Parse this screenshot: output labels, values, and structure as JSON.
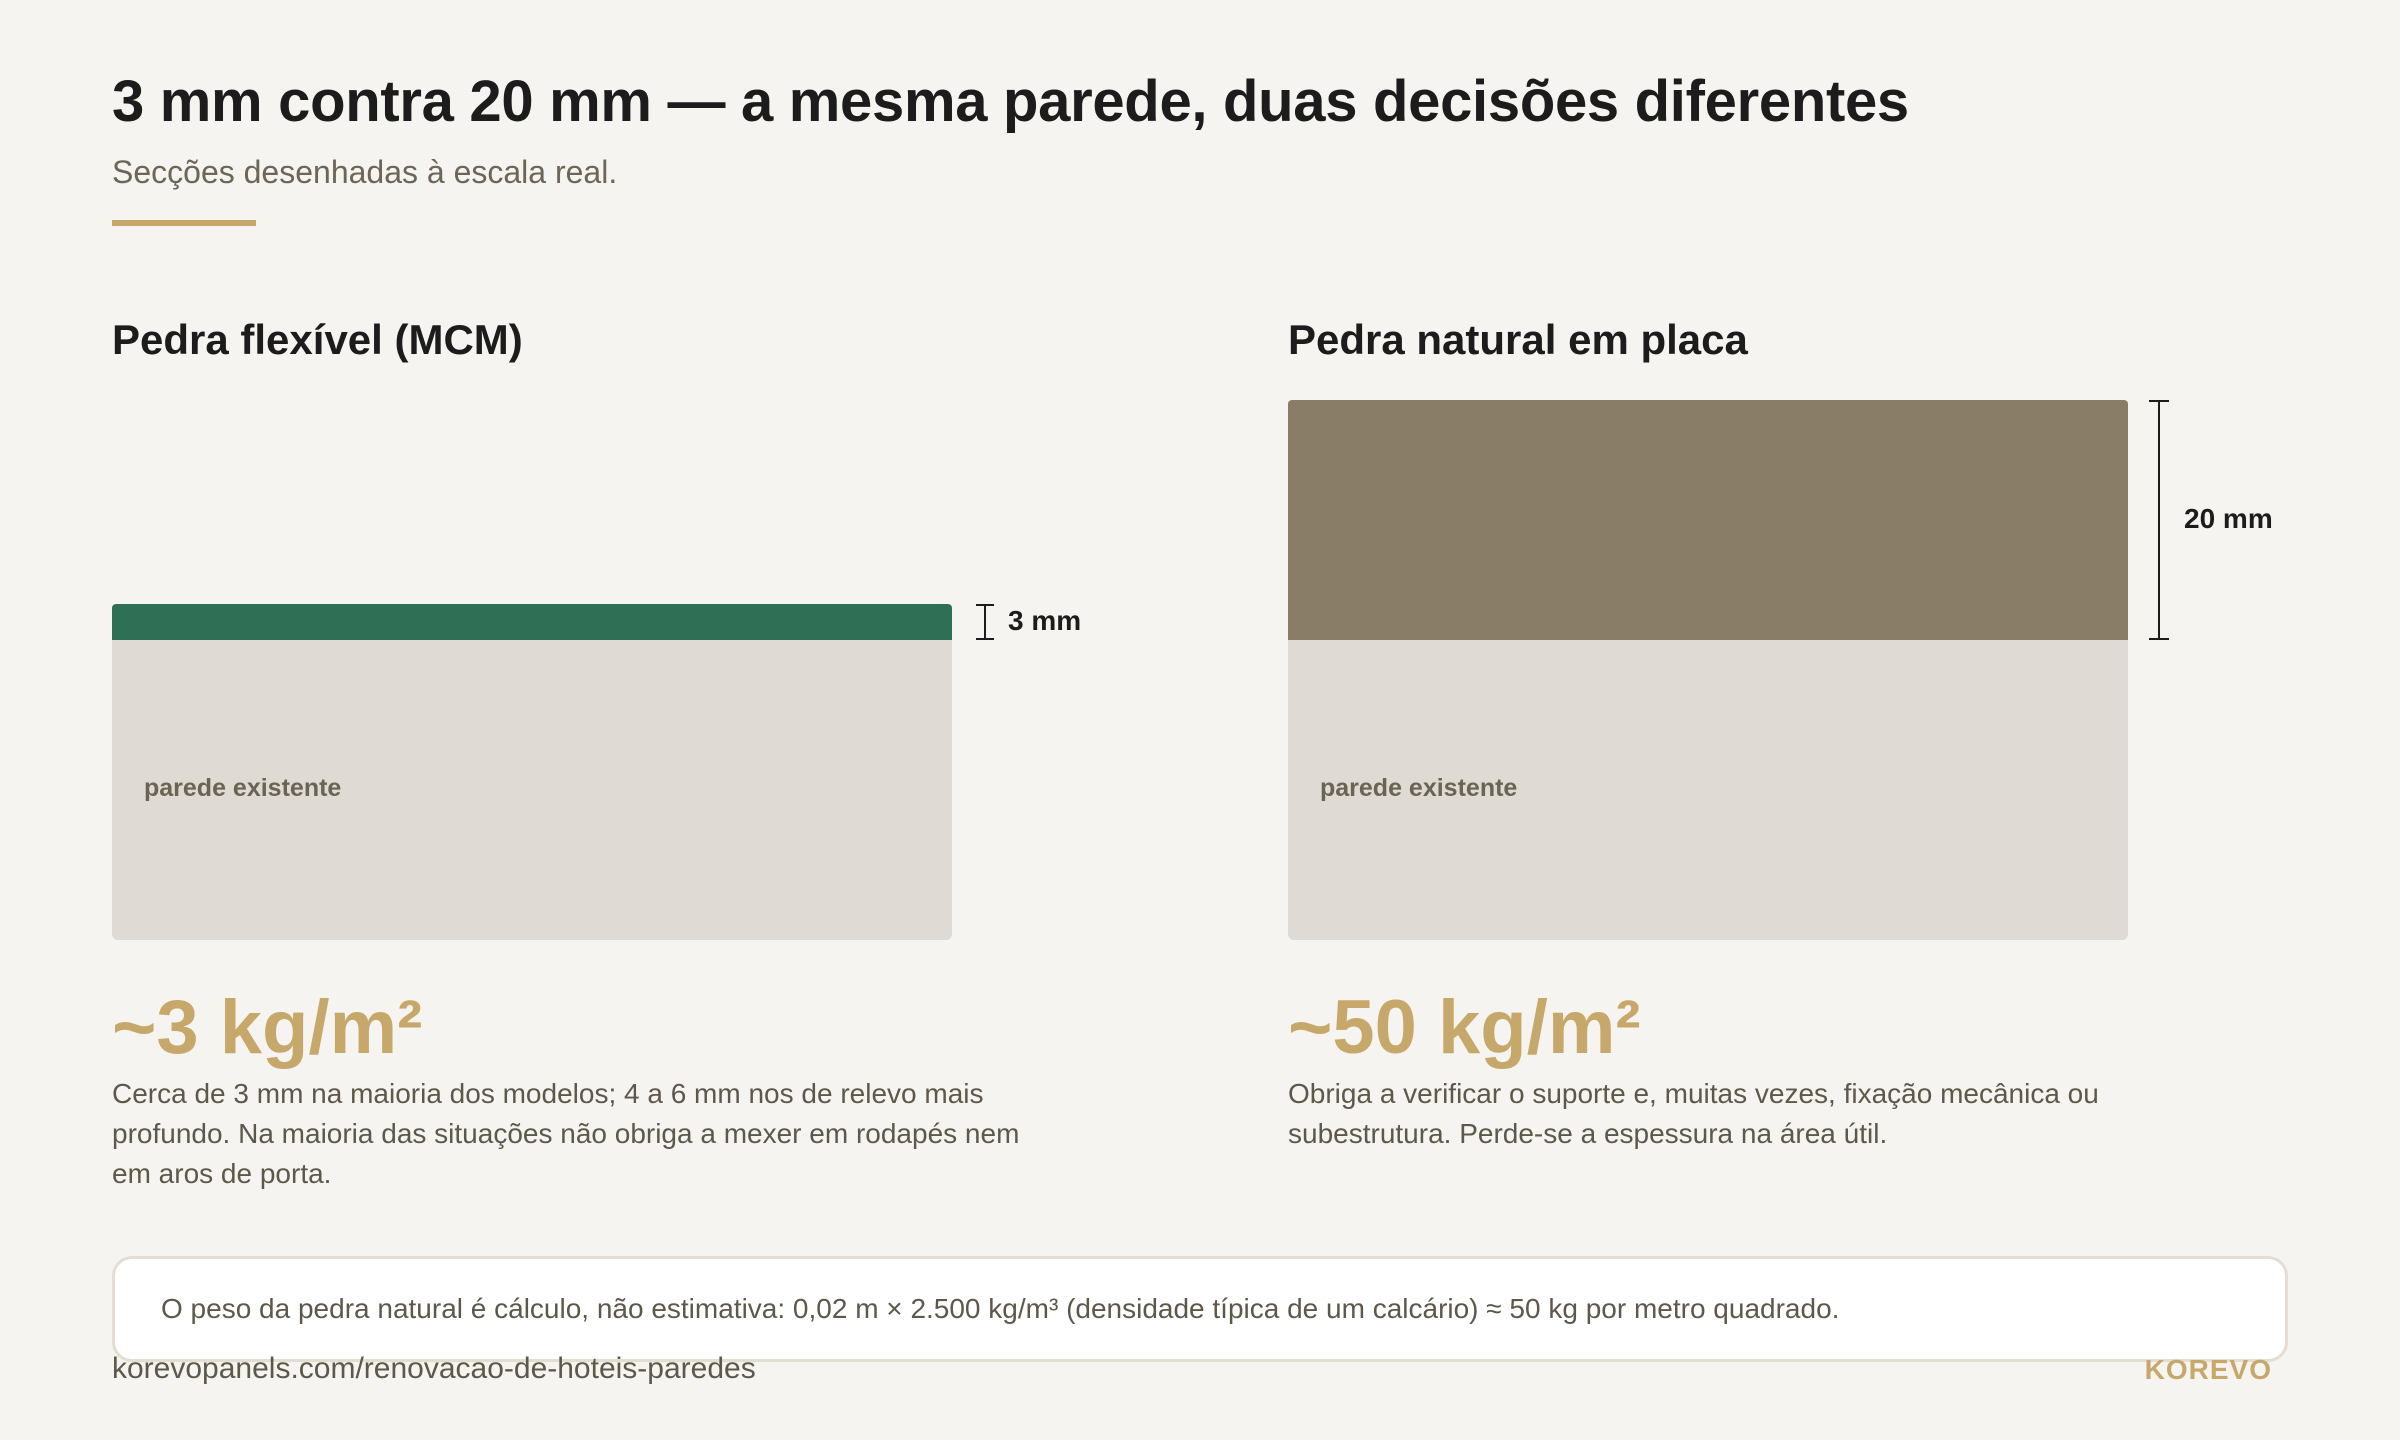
{
  "title": "3 mm contra 20 mm — a mesma parede, duas decisões diferentes",
  "subtitle": "Secções desenhadas à escala real.",
  "colors": {
    "accent": "#c7a86b",
    "mcm_layer": "#2f6f55",
    "stone_layer": "#8a7d68",
    "wall": "#dfdad3"
  },
  "panels": [
    {
      "title": "Pedra flexível (MCM)",
      "wall_label": "parede existente",
      "thickness_mm": 3,
      "dimension_label": "3 mm",
      "weight": "~3 kg/m²",
      "description": "Cerca de 3 mm na maioria dos modelos; 4 a 6 mm nos de relevo mais profundo. Na maioria das situações não obriga a mexer em rodapés nem em aros de porta."
    },
    {
      "title": "Pedra natural em placa",
      "wall_label": "parede existente",
      "thickness_mm": 20,
      "dimension_label": "20 mm",
      "weight": "~50 kg/m²",
      "description": "Obriga a verificar o suporte e, muitas vezes, fixação mecânica ou subestrutura. Perde-se a espessura na área útil."
    }
  ],
  "note": "O peso da pedra natural é cálculo, não estimativa: 0,02 m × 2.500 kg/m³ (densidade típica de um calcário) ≈ 50 kg por metro quadrado.",
  "footer": {
    "url": "korevopanels.com/renovacao-de-hoteis-paredes",
    "brand": "KOREVO"
  }
}
